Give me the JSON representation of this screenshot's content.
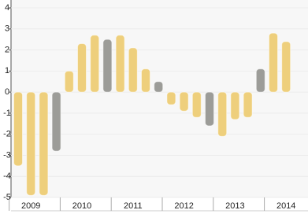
{
  "chart_data": {
    "type": "bar",
    "categories": [
      null,
      "2009",
      null,
      null,
      null,
      "2010",
      null,
      null,
      null,
      "2011",
      null,
      null,
      null,
      "2012",
      null,
      null,
      null,
      "2013",
      null,
      null,
      null,
      "2014"
    ],
    "values": [
      -3.5,
      -4.9,
      -4.9,
      -2.8,
      1.0,
      2.3,
      2.7,
      2.5,
      2.7,
      2.1,
      1.1,
      0.5,
      -0.6,
      -0.9,
      -1.2,
      -1.6,
      -2.1,
      -1.3,
      -1.2,
      1.1,
      2.8,
      2.4
    ],
    "colors": [
      "#eecf7c",
      "#eecf7c",
      "#eecf7c",
      "#9c9c98",
      "#eecf7c",
      "#eecf7c",
      "#eecf7c",
      "#9c9c98",
      "#eecf7c",
      "#eecf7c",
      "#eecf7c",
      "#9c9c98",
      "#eecf7c",
      "#eecf7c",
      "#eecf7c",
      "#9c9c98",
      "#eecf7c",
      "#eecf7c",
      "#eecf7c",
      "#9c9c98",
      "#eecf7c",
      "#eecf7c"
    ],
    "ylim": [
      -5,
      4
    ],
    "yticks": [
      -5,
      -4,
      -3,
      -2,
      -1,
      0,
      1,
      2,
      3,
      4
    ],
    "grid": true
  }
}
